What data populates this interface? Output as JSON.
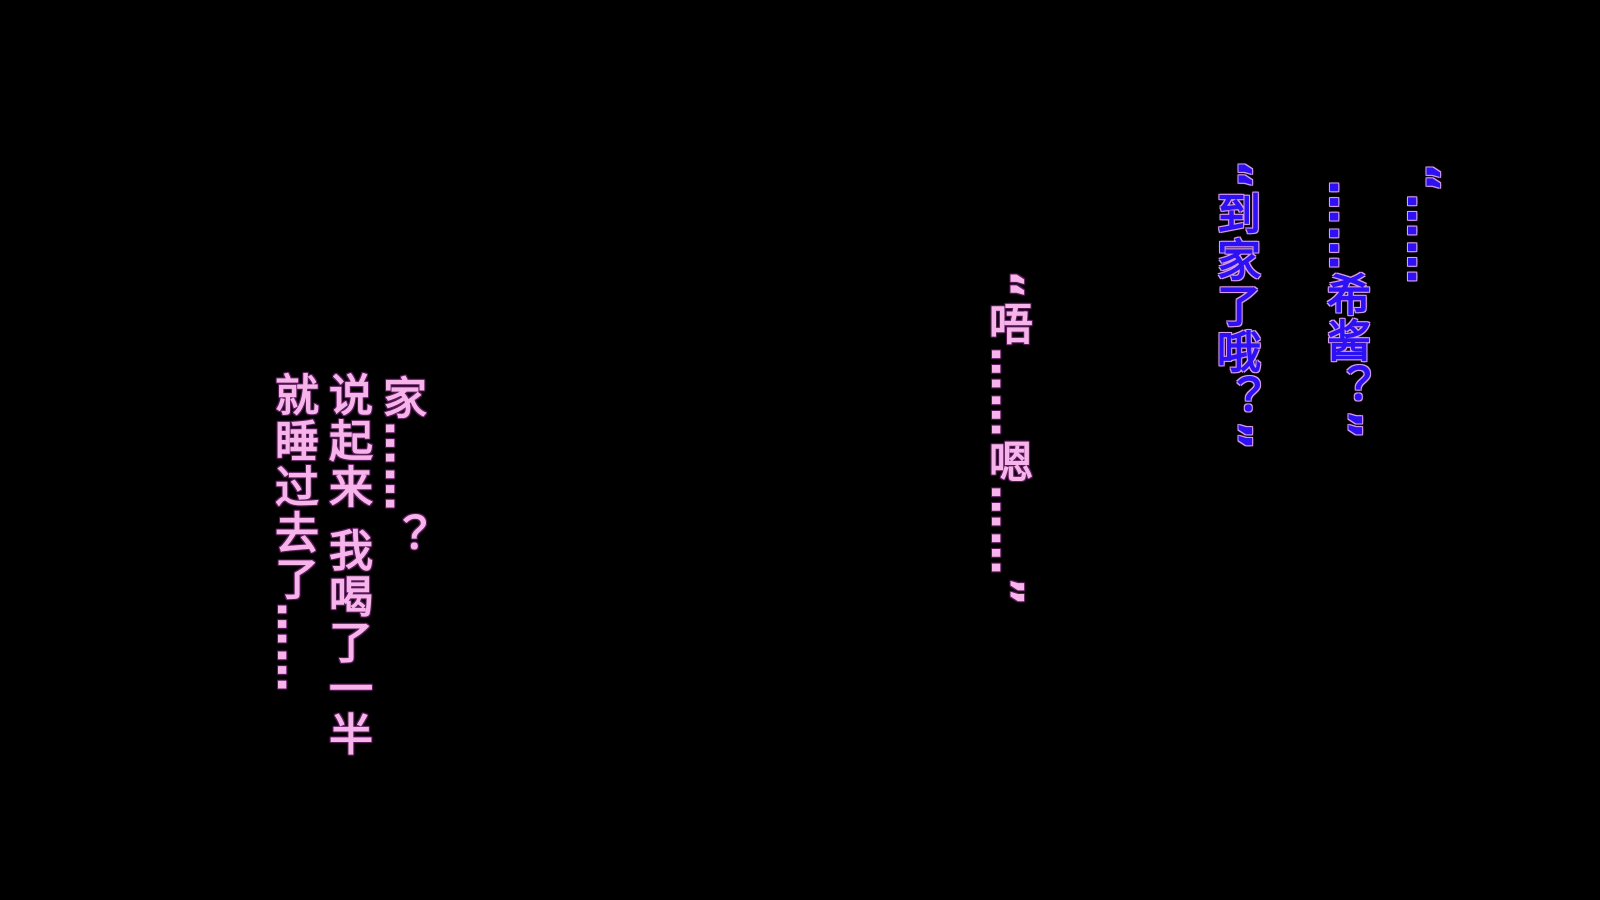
{
  "dialogue": {
    "speaker_a": {
      "color": "#2c12f2",
      "lines": [
        "“……",
        "……希酱？”",
        "“到家了哦？”"
      ]
    },
    "speaker_b_reply": {
      "color": "#f6b4ea",
      "lines": [
        "“唔……嗯……”"
      ]
    },
    "monologue": {
      "color": "#f6b4ea",
      "lines": [
        "家……？",
        "说起来 我喝了一半",
        "就睡过去了……"
      ]
    }
  }
}
